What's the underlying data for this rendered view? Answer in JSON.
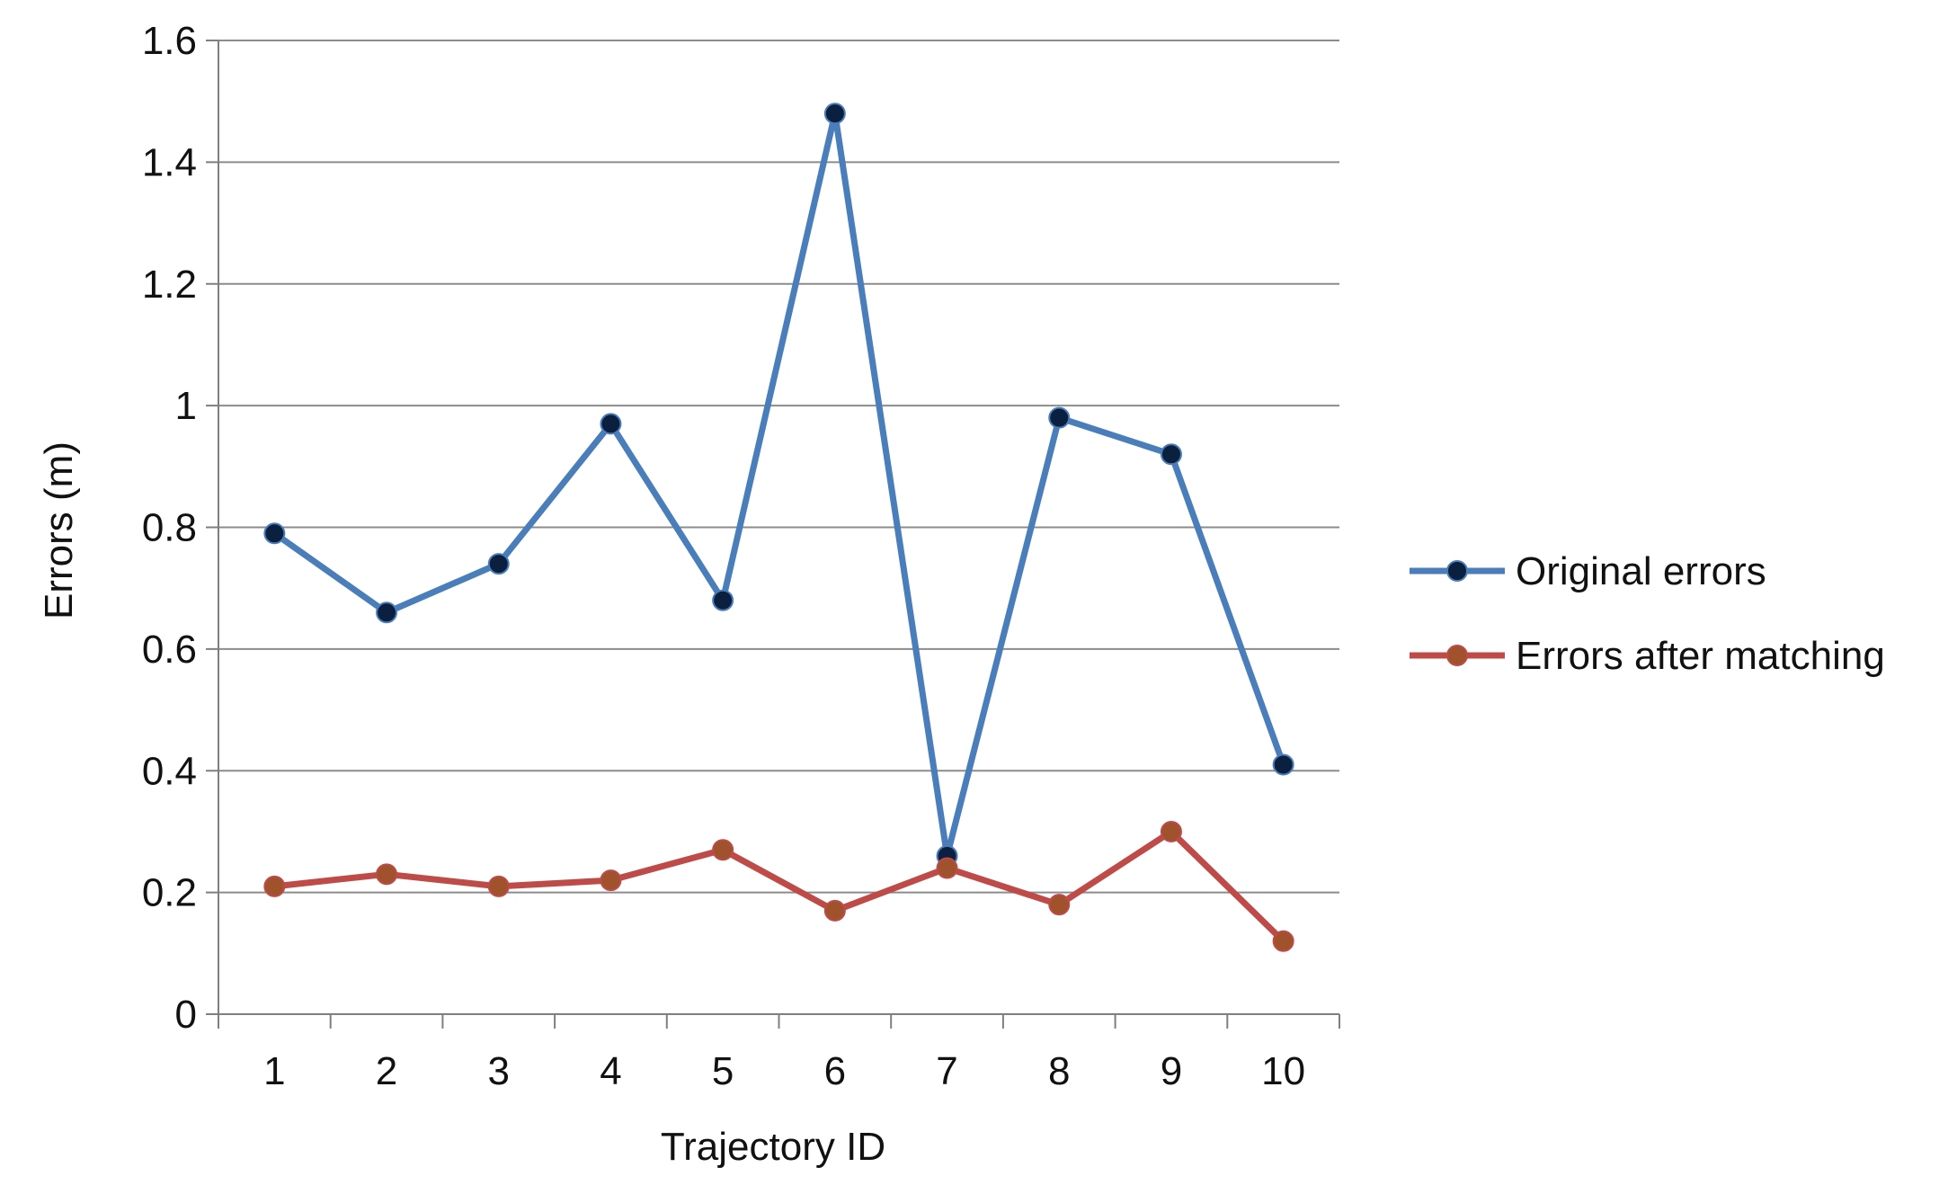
{
  "chart_data": {
    "type": "line",
    "title": "",
    "xlabel": "Trajectory ID",
    "ylabel": "Errors (m)",
    "categories": [
      "1",
      "2",
      "3",
      "4",
      "5",
      "6",
      "7",
      "8",
      "9",
      "10"
    ],
    "ylim": [
      0,
      1.6
    ],
    "yticks": [
      "0",
      "0.2",
      "0.4",
      "0.6",
      "0.8",
      "1",
      "1.2",
      "1.4",
      "1.6"
    ],
    "grid": "horizontal",
    "legend_position": "right",
    "series": [
      {
        "name": "Original errors",
        "color": "#4a7ebb",
        "marker_color": "#0b1f3f",
        "values": [
          0.79,
          0.66,
          0.74,
          0.97,
          0.68,
          1.48,
          0.26,
          0.98,
          0.92,
          0.41
        ]
      },
      {
        "name": "Errors after matching",
        "color": "#be4b48",
        "marker_color": "#a0522d",
        "values": [
          0.21,
          0.23,
          0.21,
          0.22,
          0.27,
          0.17,
          0.24,
          0.18,
          0.3,
          0.12
        ]
      }
    ]
  }
}
